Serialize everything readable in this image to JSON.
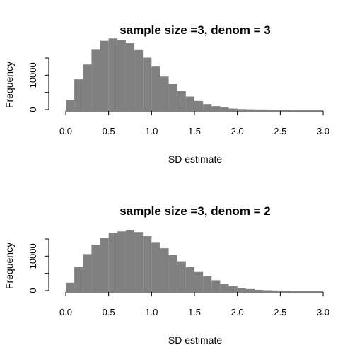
{
  "chart_data": [
    {
      "type": "bar",
      "title": "sample size =3, denom = 3",
      "xlabel": "SD estimate",
      "ylabel": "Frequency",
      "xlim": [
        0,
        3
      ],
      "ylim": [
        0,
        15000
      ],
      "x_ticks": [
        "0.0",
        "0.5",
        "1.0",
        "1.5",
        "2.0",
        "2.5",
        "3.0"
      ],
      "y_ticks": [
        "0",
        "10000"
      ],
      "bin_width": 0.1,
      "bins_start": [
        0.0,
        0.1,
        0.2,
        0.3,
        0.4,
        0.5,
        0.6,
        0.7,
        0.8,
        0.9,
        1.0,
        1.1,
        1.2,
        1.3,
        1.4,
        1.5,
        1.6,
        1.7,
        1.8,
        1.9,
        2.0,
        2.1,
        2.2,
        2.3,
        2.4,
        2.5,
        2.6,
        2.7,
        2.8,
        2.9
      ],
      "values": [
        2800,
        8800,
        13100,
        17400,
        20000,
        20700,
        20300,
        19300,
        17300,
        15100,
        12500,
        9600,
        7400,
        5400,
        3800,
        2500,
        1600,
        1000,
        600,
        300,
        150,
        80,
        40,
        20,
        10,
        5,
        0,
        0,
        0,
        0
      ],
      "color": "#808080"
    },
    {
      "type": "bar",
      "title": "sample size =3, denom = 2",
      "xlabel": "SD estimate",
      "ylabel": "Frequency",
      "xlim": [
        0,
        3
      ],
      "ylim": [
        0,
        15000
      ],
      "x_ticks": [
        "0.0",
        "0.5",
        "1.0",
        "1.5",
        "2.0",
        "2.5",
        "3.0"
      ],
      "y_ticks": [
        "0",
        "10000"
      ],
      "bin_width": 0.1,
      "bins_start": [
        0.0,
        0.1,
        0.2,
        0.3,
        0.4,
        0.5,
        0.6,
        0.7,
        0.8,
        0.9,
        1.0,
        1.1,
        1.2,
        1.3,
        1.4,
        1.5,
        1.6,
        1.7,
        1.8,
        1.9,
        2.0,
        2.1,
        2.2,
        2.3,
        2.4,
        2.5,
        2.6,
        2.7,
        2.8,
        2.9
      ],
      "values": [
        2300,
        6800,
        10600,
        13300,
        15300,
        16800,
        17200,
        17500,
        17000,
        15800,
        14100,
        12300,
        10300,
        8500,
        6800,
        5400,
        4100,
        3000,
        2000,
        1300,
        800,
        450,
        220,
        100,
        40,
        10,
        0,
        0,
        0,
        0
      ],
      "color": "#808080"
    }
  ]
}
